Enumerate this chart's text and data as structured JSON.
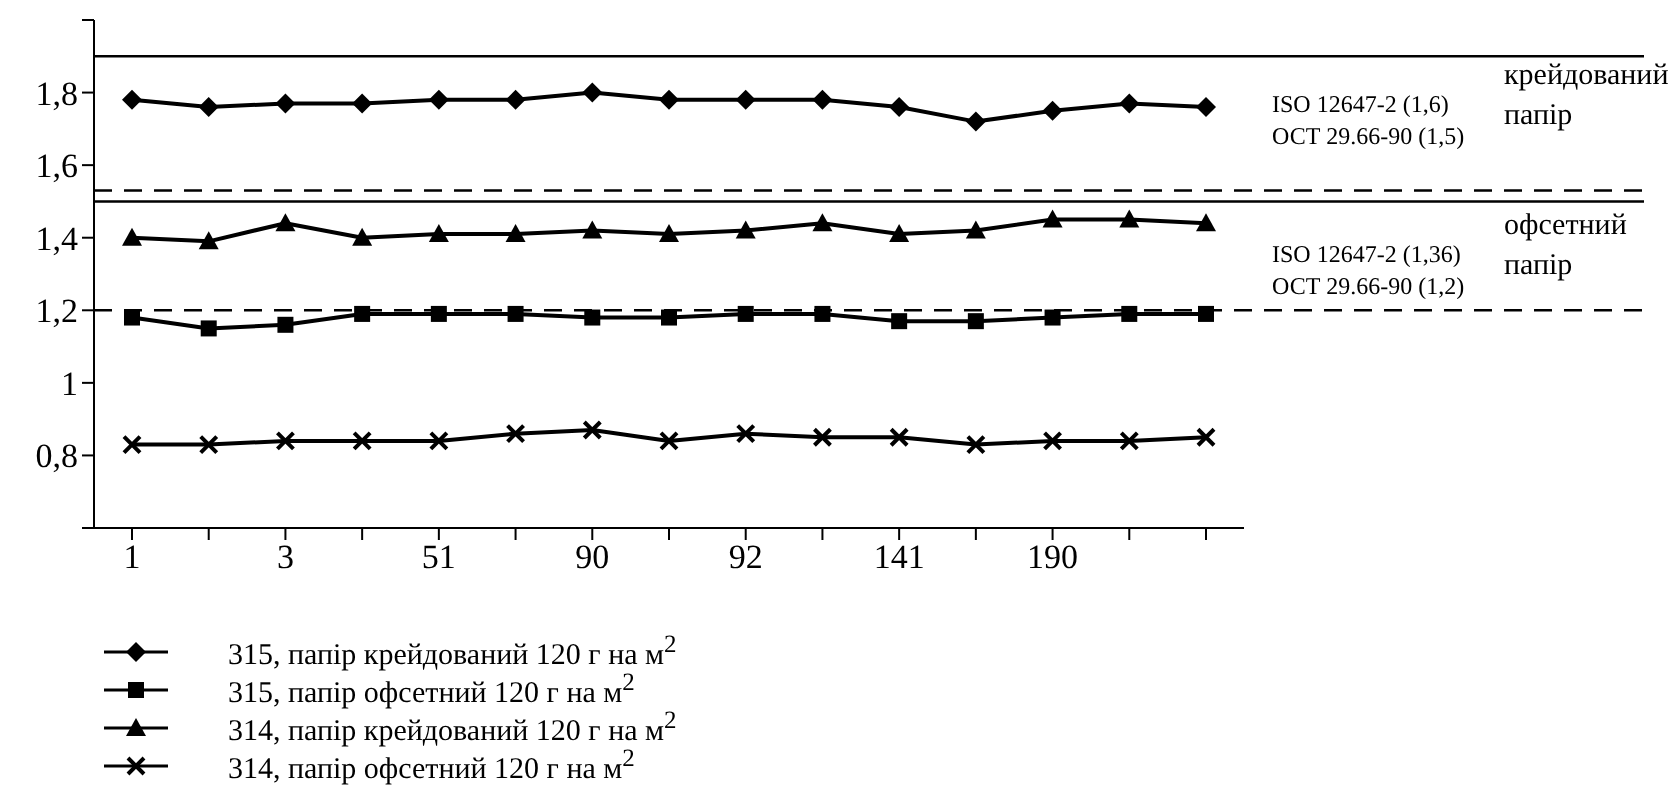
{
  "chart_data": {
    "type": "line",
    "categories": [
      "1",
      null,
      "3",
      null,
      "51",
      null,
      "90",
      null,
      "92",
      null,
      "141",
      null,
      "190",
      null,
      null
    ],
    "series": [
      {
        "name": "315, папір крейдований 120 г на м$^{2}$",
        "color": "#000000",
        "marker": "diamond",
        "values": [
          1.78,
          1.76,
          1.77,
          1.77,
          1.78,
          1.78,
          1.8,
          1.78,
          1.78,
          1.78,
          1.76,
          1.72,
          1.75,
          1.77,
          1.76
        ]
      },
      {
        "name": "315, папір офсетний 120 г на м$^{2}$",
        "color": "#000000",
        "marker": "square",
        "values": [
          1.18,
          1.15,
          1.16,
          1.19,
          1.19,
          1.19,
          1.18,
          1.18,
          1.19,
          1.19,
          1.17,
          1.17,
          1.18,
          1.19,
          1.19
        ]
      },
      {
        "name": "314, папір крейдований 120 г на м$^{2}$",
        "color": "#000000",
        "marker": "triangle",
        "values": [
          1.4,
          1.39,
          1.44,
          1.4,
          1.41,
          1.41,
          1.42,
          1.41,
          1.42,
          1.44,
          1.41,
          1.42,
          1.45,
          1.45,
          1.44
        ]
      },
      {
        "name": "314, папір офсетний 120 г на м$^{2}$",
        "color": "#000000",
        "marker": "cross",
        "values": [
          0.83,
          0.83,
          0.84,
          0.84,
          0.84,
          0.86,
          0.87,
          0.84,
          0.86,
          0.85,
          0.85,
          0.83,
          0.84,
          0.84,
          0.85
        ]
      }
    ],
    "ylim": [
      0.6,
      2.0
    ],
    "yticks": [
      {
        "value": 0.6,
        "label": null
      },
      {
        "value": 0.8,
        "label": "0,8"
      },
      1,
      {
        "value": 1.2,
        "label": "1,2"
      },
      {
        "value": 1.4,
        "label": "1,4"
      },
      {
        "value": 1.6,
        "label": "1,6"
      },
      {
        "value": 1.8,
        "label": "1,8"
      },
      {
        "value": 2.0,
        "label": null
      }
    ],
    "ref_lines": [
      {
        "axis": "y",
        "value": 1.9,
        "color": "#000000",
        "line_style": "solid"
      },
      {
        "axis": "y",
        "value": 1.53,
        "color": "#000000",
        "line_style": "dashed"
      },
      {
        "axis": "y",
        "value": 1.5,
        "color": "#000000",
        "line_style": "solid"
      },
      {
        "axis": "y",
        "value": 1.2,
        "color": "#000000",
        "line_style": "dashed"
      }
    ],
    "annotations": [
      "ISO 12647-2 (1,6)",
      "ОСТ 29.66-90 (1,5)",
      "крейдований папір",
      "ISO 12647-2 (1,36)",
      "ОСТ 29.66-90 (1,2)",
      "офсетний папір"
    ],
    "grid": false,
    "legend": "bottom",
    "line_style": "solid"
  }
}
